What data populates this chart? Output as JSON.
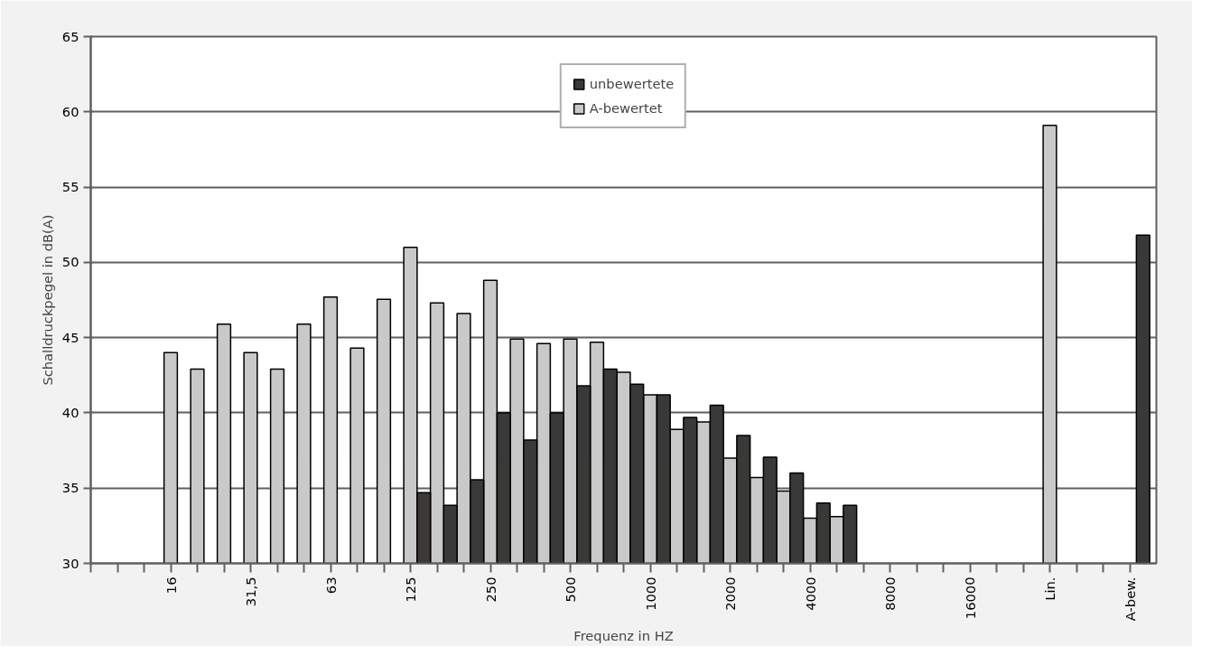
{
  "chart_data": {
    "type": "bar",
    "xlabel": "Frequenz in HZ",
    "ylabel": "Schalldruckpegel in dB(A)",
    "categories": [
      null,
      null,
      null,
      "16",
      null,
      null,
      "31,5",
      null,
      null,
      "63",
      null,
      null,
      "125",
      null,
      null,
      "250",
      null,
      null,
      "500",
      null,
      null,
      "1000",
      null,
      null,
      "2000",
      null,
      null,
      "4000",
      null,
      null,
      "8000",
      null,
      null,
      "16000",
      null,
      null,
      "Lin.",
      null,
      null,
      "A-bew."
    ],
    "series": [
      {
        "name": "unbewertete",
        "color": "#3a3938",
        "values": [
          null,
          null,
          null,
          null,
          null,
          null,
          null,
          null,
          null,
          null,
          null,
          null,
          34.7,
          33.85,
          35.55,
          40.0,
          38.2,
          40.0,
          41.8,
          42.9,
          41.9,
          41.2,
          39.7,
          40.5,
          38.5,
          37.05,
          36.0,
          34.0,
          33.85,
          null,
          null,
          null,
          null,
          null,
          null,
          null,
          null,
          null,
          null,
          51.8
        ]
      },
      {
        "name": "A-bewertet",
        "color": "#c8c9c8",
        "values": [
          null,
          null,
          null,
          44.0,
          42.9,
          45.9,
          44.0,
          42.9,
          45.9,
          47.7,
          44.3,
          47.55,
          51.0,
          47.3,
          46.6,
          48.8,
          44.9,
          44.6,
          44.9,
          44.7,
          42.7,
          41.2,
          38.9,
          39.4,
          37.0,
          35.7,
          34.8,
          33.0,
          33.1,
          null,
          null,
          null,
          null,
          null,
          null,
          null,
          59.1,
          null,
          null,
          null
        ]
      }
    ],
    "ylim": [
      30,
      65
    ],
    "yticks": [
      30,
      35,
      40,
      45,
      50,
      55,
      60,
      65
    ],
    "grid": "y",
    "legend": "top"
  }
}
